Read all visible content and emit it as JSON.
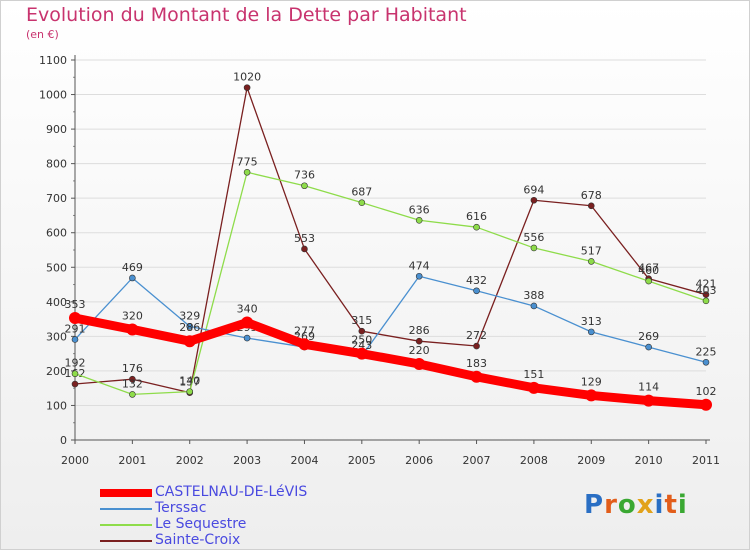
{
  "title": "Evolution du Montant de la Dette par Habitant",
  "subtitle": "(en €)",
  "logo": {
    "text": "Proxiti",
    "colors": [
      "#2a6fc4",
      "#e25d1a",
      "#3aa832",
      "#e2a21a",
      "#2a6fc4",
      "#e25d1a",
      "#3aa832"
    ]
  },
  "chart_data": {
    "type": "line",
    "x": [
      "2000",
      "2001",
      "2002",
      "2003",
      "2004",
      "2005",
      "2006",
      "2007",
      "2008",
      "2009",
      "2010",
      "2011"
    ],
    "ylim": [
      0,
      1100
    ],
    "yticks": [
      0,
      100,
      200,
      300,
      400,
      500,
      600,
      700,
      800,
      900,
      1000,
      1100
    ],
    "legend_position": "bottom-left",
    "series": [
      {
        "name": "CASTELNAU-DE-LéVIS",
        "color": "#ff0000",
        "values": [
          353,
          320,
          286,
          340,
          277,
          250,
          220,
          183,
          151,
          129,
          114,
          102
        ]
      },
      {
        "name": "Terssac",
        "color": "#4a90d0",
        "values": [
          291,
          469,
          329,
          295,
          269,
          243,
          474,
          432,
          388,
          313,
          269,
          225
        ]
      },
      {
        "name": "Le Sequestre",
        "color": "#8edc4a",
        "values": [
          192,
          132,
          140,
          775,
          736,
          687,
          636,
          616,
          556,
          517,
          460,
          403
        ]
      },
      {
        "name": "Sainte-Croix",
        "color": "#7a2020",
        "values": [
          162,
          176,
          137,
          1020,
          553,
          315,
          286,
          272,
          694,
          678,
          467,
          421
        ]
      }
    ]
  }
}
